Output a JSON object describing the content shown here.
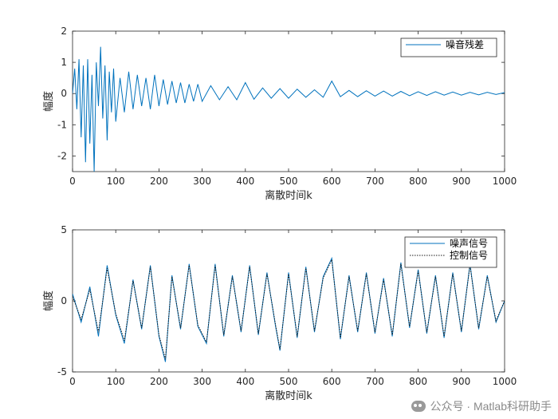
{
  "chart_data": [
    {
      "type": "line",
      "xlabel": "离散时间k",
      "ylabel": "幅度",
      "xlim": [
        0,
        1000
      ],
      "ylim": [
        -2.5,
        2
      ],
      "xticks": [
        0,
        100,
        200,
        300,
        400,
        500,
        600,
        700,
        800,
        900,
        1000
      ],
      "yticks": [
        -2,
        -1,
        0,
        1,
        2
      ],
      "legend_position": "top-right",
      "series": [
        {
          "name": "噪音残差",
          "color": "#0072BD",
          "style": "solid",
          "x": [
            0,
            5,
            10,
            15,
            20,
            25,
            30,
            35,
            40,
            45,
            50,
            55,
            60,
            65,
            70,
            75,
            80,
            85,
            90,
            95,
            100,
            110,
            120,
            130,
            140,
            150,
            160,
            170,
            180,
            190,
            200,
            210,
            220,
            230,
            240,
            250,
            260,
            270,
            280,
            290,
            300,
            320,
            340,
            360,
            380,
            400,
            420,
            440,
            460,
            480,
            500,
            520,
            540,
            560,
            580,
            600,
            620,
            640,
            660,
            680,
            700,
            720,
            740,
            760,
            780,
            800,
            820,
            840,
            860,
            880,
            900,
            920,
            940,
            960,
            980,
            1000
          ],
          "values": [
            0.0,
            0.8,
            -0.5,
            1.1,
            -1.4,
            0.9,
            -2.2,
            1.1,
            -1.6,
            0.6,
            -2.5,
            1.0,
            -0.4,
            1.5,
            -0.8,
            0.9,
            -1.5,
            0.7,
            -0.6,
            0.8,
            -0.9,
            0.5,
            -0.6,
            0.7,
            -0.5,
            0.6,
            -0.4,
            0.5,
            -0.5,
            0.6,
            -0.4,
            0.45,
            -0.35,
            0.4,
            -0.3,
            0.35,
            -0.3,
            0.3,
            -0.25,
            0.3,
            -0.25,
            0.25,
            -0.2,
            0.22,
            -0.2,
            0.35,
            -0.18,
            0.18,
            -0.15,
            0.16,
            -0.15,
            0.14,
            -0.12,
            0.12,
            -0.12,
            0.4,
            -0.1,
            0.1,
            -0.1,
            0.09,
            -0.08,
            0.08,
            -0.08,
            0.07,
            -0.07,
            0.06,
            -0.06,
            0.06,
            -0.05,
            0.05,
            -0.05,
            0.04,
            -0.04,
            0.04,
            -0.03,
            0.03
          ]
        }
      ]
    },
    {
      "type": "line",
      "xlabel": "离散时间k",
      "ylabel": "幅度",
      "xlim": [
        0,
        1000
      ],
      "ylim": [
        -5,
        5
      ],
      "xticks": [
        0,
        100,
        200,
        300,
        400,
        500,
        600,
        700,
        800,
        900,
        1000
      ],
      "yticks": [
        -5,
        0,
        5
      ],
      "legend_position": "top-right",
      "series": [
        {
          "name": "噪声信号",
          "color": "#0072BD",
          "style": "solid",
          "x": [
            0,
            20,
            40,
            60,
            80,
            100,
            120,
            140,
            160,
            180,
            200,
            215,
            230,
            250,
            270,
            290,
            310,
            330,
            350,
            370,
            390,
            410,
            430,
            450,
            470,
            480,
            500,
            520,
            540,
            560,
            580,
            600,
            620,
            640,
            660,
            680,
            700,
            720,
            740,
            760,
            780,
            800,
            820,
            840,
            860,
            880,
            900,
            920,
            940,
            960,
            980,
            1000
          ],
          "values": [
            0.5,
            -1.5,
            1.0,
            -2.5,
            2.5,
            -1.0,
            -3.0,
            1.5,
            -2.0,
            2.5,
            -2.5,
            -4.3,
            1.8,
            -2.0,
            2.6,
            -1.8,
            -3.0,
            2.6,
            -2.5,
            1.8,
            -2.2,
            2.5,
            -2.4,
            2.0,
            -1.8,
            -3.5,
            2.0,
            -2.6,
            2.4,
            -2.2,
            1.7,
            3.0,
            -2.7,
            1.8,
            -2.2,
            2.0,
            -2.3,
            1.6,
            -2.5,
            2.7,
            -1.9,
            2.2,
            -2.3,
            1.8,
            -2.6,
            2.0,
            -2.2,
            2.6,
            -2.0,
            1.8,
            -1.5,
            0.0
          ]
        },
        {
          "name": "控制信号",
          "color": "#1a1a1a",
          "style": "dotted",
          "x": [
            0,
            20,
            40,
            60,
            80,
            100,
            120,
            140,
            160,
            180,
            200,
            215,
            230,
            250,
            270,
            290,
            310,
            330,
            350,
            370,
            390,
            410,
            430,
            450,
            470,
            480,
            500,
            520,
            540,
            560,
            580,
            600,
            620,
            640,
            660,
            680,
            700,
            720,
            740,
            760,
            780,
            800,
            820,
            840,
            860,
            880,
            900,
            920,
            940,
            960,
            980,
            1000
          ],
          "values": [
            0.3,
            -1.3,
            0.8,
            -2.2,
            2.3,
            -0.9,
            -2.8,
            1.4,
            -1.9,
            2.4,
            -2.4,
            -4.1,
            1.7,
            -1.9,
            2.5,
            -1.7,
            -2.9,
            2.5,
            -2.4,
            1.7,
            -2.1,
            2.4,
            -2.3,
            1.9,
            -1.7,
            -3.4,
            1.9,
            -2.5,
            2.3,
            -2.1,
            1.6,
            2.9,
            -2.6,
            1.7,
            -2.1,
            1.9,
            -2.2,
            1.5,
            -2.4,
            2.6,
            -1.8,
            2.1,
            -2.2,
            1.7,
            -2.5,
            1.9,
            -2.1,
            2.5,
            -1.9,
            1.7,
            -1.4,
            0.0
          ]
        }
      ]
    }
  ],
  "watermark": {
    "text": "公众号 · Matlab科研助手",
    "icon": "wechat-icon"
  }
}
